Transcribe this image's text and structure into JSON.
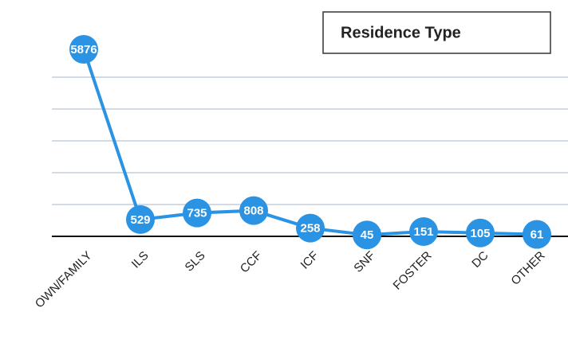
{
  "chart_data": {
    "type": "line",
    "title": "Residence Type",
    "categories": [
      "OWN/FAMILY",
      "ILS",
      "SLS",
      "CCF",
      "ICF",
      "SNF",
      "FOSTER",
      "DC",
      "OTHER"
    ],
    "values": [
      5876,
      529,
      735,
      808,
      258,
      45,
      151,
      105,
      61
    ],
    "color": "#2a93e4",
    "ylim": [
      0,
      6000
    ],
    "yticks": [
      0,
      1000,
      2000,
      3000,
      4000,
      5000
    ],
    "grid": true
  }
}
